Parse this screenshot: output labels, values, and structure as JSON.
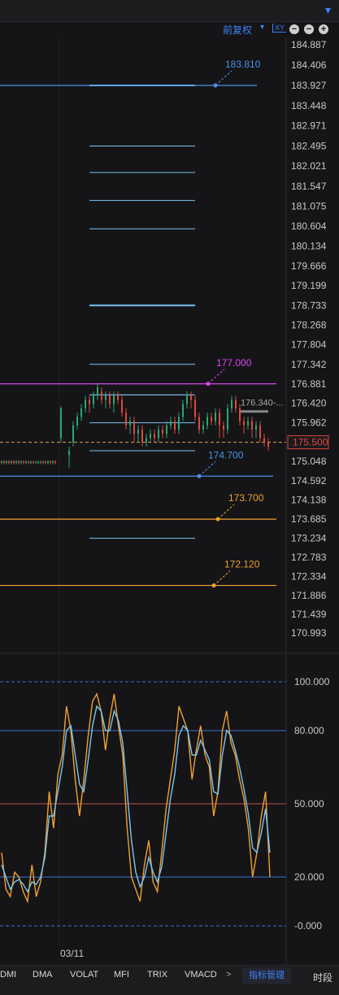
{
  "toolbar": {
    "adjust_label": "前复权",
    "adjust_caret": "▾",
    "xy_label": "XY",
    "zoom_out1": "−",
    "zoom_out2": "−",
    "zoom_in": "+"
  },
  "colors": {
    "up": "#2aa876",
    "down": "#e0483c",
    "blue": "#3b82f6",
    "orange": "#f0a030",
    "magenta": "#d946ef",
    "last": "#e8a24a",
    "line_blue": "#7cc4f2"
  },
  "price_axis": [
    "184.887",
    "184.406",
    "183.927",
    "183.448",
    "182.971",
    "182.495",
    "182.021",
    "181.547",
    "181.075",
    "180.604",
    "180.134",
    "179.666",
    "179.199",
    "178.733",
    "178.268",
    "177.804",
    "177.342",
    "176.881",
    "176.420",
    "175.962",
    "175.048",
    "174.592",
    "174.138",
    "173.685",
    "173.234",
    "172.783",
    "172.334",
    "171.886",
    "171.439",
    "170.993"
  ],
  "last_price": "175.500",
  "alerts": [
    {
      "label": "183.810",
      "color": "#4a90e2"
    },
    {
      "label": "177.000",
      "color": "#d946ef"
    },
    {
      "label": "174.700",
      "color": "#4a90e2"
    },
    {
      "label": "173.700",
      "color": "#f0a030"
    },
    {
      "label": "172.120",
      "color": "#f0a030"
    }
  ],
  "peak_label": "176.340-...",
  "ind_axis": [
    "100.000",
    "80.000",
    "50.000",
    "20.000",
    "-0.000"
  ],
  "date_label": "03/11",
  "tabs": [
    "DMI",
    "DMA",
    "VOLAT",
    "MFI",
    "TRIX",
    "VMACD"
  ],
  "tab_arrow": ">",
  "indicator_manager": "指标管理",
  "period": "时段",
  "pin_icon": "📌"
}
